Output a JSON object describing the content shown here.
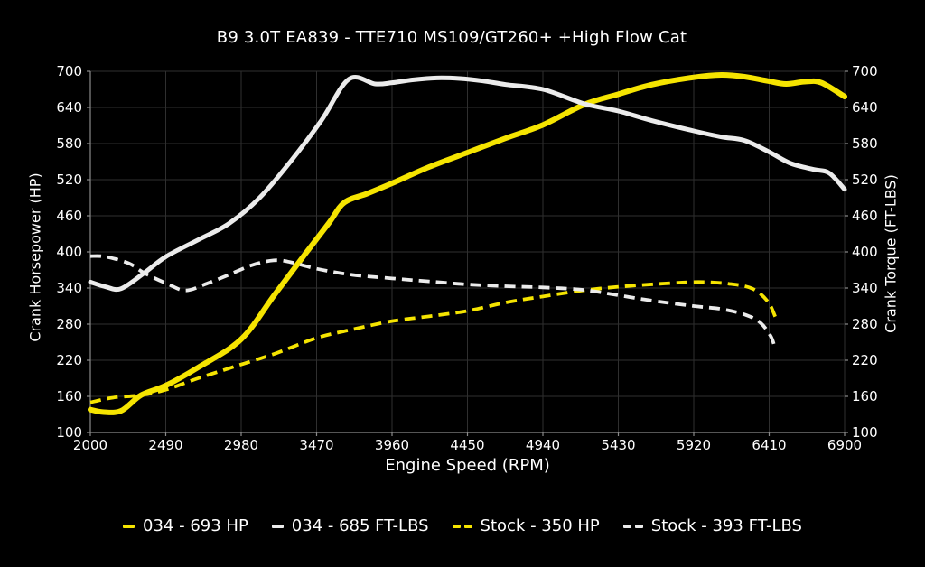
{
  "title": "B9 3.0T EA839 - TTE710 MS109/GT260+ +High Flow Cat",
  "colors": {
    "background": "#000000",
    "grid": "#2f2f2f",
    "axis": "#8a8a8a",
    "text": "#ffffff",
    "curve_yellow": "#f5e400",
    "curve_white": "#ebebeb"
  },
  "chart_data": {
    "type": "line",
    "title": "B9 3.0T EA839 - TTE710 MS109/GT260+ +High Flow Cat",
    "xlabel": "Engine Speed (RPM)",
    "ylabel_left": "Crank Horsepower (HP)",
    "ylabel_right": "Crank Torque (FT-LBS)",
    "xlim": [
      2000,
      6900
    ],
    "ylim": [
      100,
      700
    ],
    "xticks": [
      2000,
      2490,
      2980,
      3470,
      3960,
      4450,
      4940,
      5430,
      5920,
      6410,
      6900
    ],
    "yticks": [
      100,
      160,
      220,
      280,
      340,
      400,
      460,
      520,
      580,
      640,
      700
    ],
    "grid": true,
    "legend_position": "bottom",
    "series": [
      {
        "name": "034 - 693 HP",
        "color": "yellow",
        "style": "solid",
        "peak": 693,
        "points": [
          [
            2000,
            138
          ],
          [
            2080,
            134
          ],
          [
            2200,
            136
          ],
          [
            2330,
            162
          ],
          [
            2490,
            178
          ],
          [
            2700,
            208
          ],
          [
            2980,
            255
          ],
          [
            3200,
            330
          ],
          [
            3400,
            398
          ],
          [
            3550,
            448
          ],
          [
            3650,
            482
          ],
          [
            3800,
            497
          ],
          [
            3960,
            514
          ],
          [
            4200,
            541
          ],
          [
            4450,
            565
          ],
          [
            4700,
            589
          ],
          [
            4940,
            611
          ],
          [
            5210,
            645
          ],
          [
            5430,
            662
          ],
          [
            5650,
            678
          ],
          [
            5920,
            690
          ],
          [
            6100,
            694
          ],
          [
            6250,
            691
          ],
          [
            6400,
            684
          ],
          [
            6520,
            679
          ],
          [
            6650,
            683
          ],
          [
            6750,
            681
          ],
          [
            6900,
            658
          ]
        ]
      },
      {
        "name": "034 - 685 FT-LBS",
        "color": "white",
        "style": "solid",
        "peak": 685,
        "points": [
          [
            2000,
            350
          ],
          [
            2100,
            342
          ],
          [
            2200,
            339
          ],
          [
            2350,
            365
          ],
          [
            2490,
            392
          ],
          [
            2700,
            420
          ],
          [
            2900,
            447
          ],
          [
            3100,
            490
          ],
          [
            3300,
            550
          ],
          [
            3500,
            618
          ],
          [
            3680,
            687
          ],
          [
            3850,
            679
          ],
          [
            3960,
            681
          ],
          [
            4100,
            686
          ],
          [
            4250,
            689
          ],
          [
            4400,
            688
          ],
          [
            4550,
            684
          ],
          [
            4700,
            678
          ],
          [
            4940,
            670
          ],
          [
            5210,
            646
          ],
          [
            5430,
            634
          ],
          [
            5650,
            618
          ],
          [
            5920,
            601
          ],
          [
            6100,
            591
          ],
          [
            6250,
            585
          ],
          [
            6410,
            566
          ],
          [
            6550,
            547
          ],
          [
            6700,
            537
          ],
          [
            6800,
            531
          ],
          [
            6900,
            504
          ]
        ]
      },
      {
        "name": "Stock - 350 HP",
        "color": "yellow",
        "style": "dashed",
        "peak": 350,
        "points": [
          [
            2000,
            150
          ],
          [
            2150,
            158
          ],
          [
            2330,
            162
          ],
          [
            2490,
            171
          ],
          [
            2700,
            190
          ],
          [
            2980,
            213
          ],
          [
            3200,
            231
          ],
          [
            3470,
            257
          ],
          [
            3700,
            271
          ],
          [
            3960,
            285
          ],
          [
            4200,
            293
          ],
          [
            4450,
            302
          ],
          [
            4700,
            316
          ],
          [
            4940,
            326
          ],
          [
            5200,
            336
          ],
          [
            5430,
            342
          ],
          [
            5700,
            347
          ],
          [
            5950,
            350
          ],
          [
            6150,
            347
          ],
          [
            6300,
            339
          ],
          [
            6400,
            318
          ],
          [
            6450,
            292
          ]
        ]
      },
      {
        "name": "Stock - 393 FT-LBS",
        "color": "white",
        "style": "dashed",
        "peak": 393,
        "points": [
          [
            2000,
            393
          ],
          [
            2100,
            392
          ],
          [
            2250,
            381
          ],
          [
            2350,
            365
          ],
          [
            2500,
            347
          ],
          [
            2620,
            336
          ],
          [
            2763,
            348
          ],
          [
            2900,
            362
          ],
          [
            3050,
            378
          ],
          [
            3190,
            386
          ],
          [
            3300,
            383
          ],
          [
            3470,
            372
          ],
          [
            3700,
            362
          ],
          [
            3960,
            356
          ],
          [
            4200,
            351
          ],
          [
            4450,
            346
          ],
          [
            4700,
            343
          ],
          [
            4940,
            341
          ],
          [
            5200,
            337
          ],
          [
            5430,
            328
          ],
          [
            5650,
            319
          ],
          [
            5920,
            310
          ],
          [
            6100,
            305
          ],
          [
            6250,
            296
          ],
          [
            6350,
            283
          ],
          [
            6420,
            260
          ],
          [
            6450,
            238
          ]
        ]
      }
    ]
  }
}
